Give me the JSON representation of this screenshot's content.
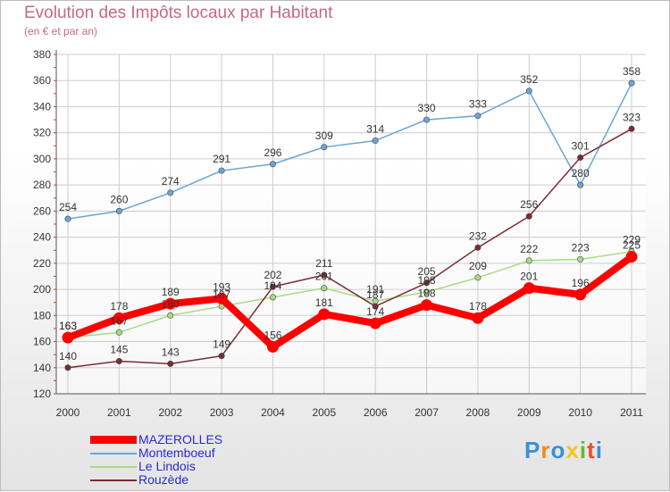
{
  "chart_data": {
    "type": "line",
    "title": "Evolution des Impôts locaux par Habitant",
    "subtitle": "(en € et par an)",
    "categories": [
      "2000",
      "2001",
      "2002",
      "2003",
      "2004",
      "2005",
      "2006",
      "2007",
      "2008",
      "2009",
      "2010",
      "2011"
    ],
    "ylim": [
      120,
      380
    ],
    "yticks": [
      120,
      140,
      160,
      180,
      200,
      220,
      240,
      260,
      280,
      300,
      320,
      340,
      360,
      380
    ],
    "series": [
      {
        "name": "MAZEROLLES",
        "color": "#ff0000",
        "values": [
          163,
          178,
          189,
          193,
          156,
          181,
          174,
          188,
          178,
          201,
          196,
          225
        ]
      },
      {
        "name": "Montemboeuf",
        "color": "#6aa5d6",
        "values": [
          254,
          260,
          274,
          291,
          296,
          309,
          314,
          330,
          333,
          352,
          280,
          358
        ]
      },
      {
        "name": "Le Lindois",
        "color": "#a8dc84",
        "values": [
          163,
          167,
          180,
          187,
          194,
          201,
          191,
          198,
          209,
          222,
          223,
          229
        ]
      },
      {
        "name": "Rouzède",
        "color": "#7a2c34",
        "values": [
          140,
          145,
          143,
          149,
          202,
          211,
          187,
          205,
          232,
          256,
          301,
          323
        ]
      }
    ]
  },
  "legend": [
    "MAZEROLLES",
    "Montemboeuf",
    "Le Lindois",
    "Rouzède"
  ],
  "logo": {
    "letters": [
      "P",
      "r",
      "o",
      "x",
      "i",
      "t",
      "i"
    ],
    "colors": [
      "#3a8fd8",
      "#f08a1c",
      "#3a8fd8",
      "#f0c81c",
      "#6ab82c",
      "#e8502c",
      "#3a8fd8"
    ]
  }
}
